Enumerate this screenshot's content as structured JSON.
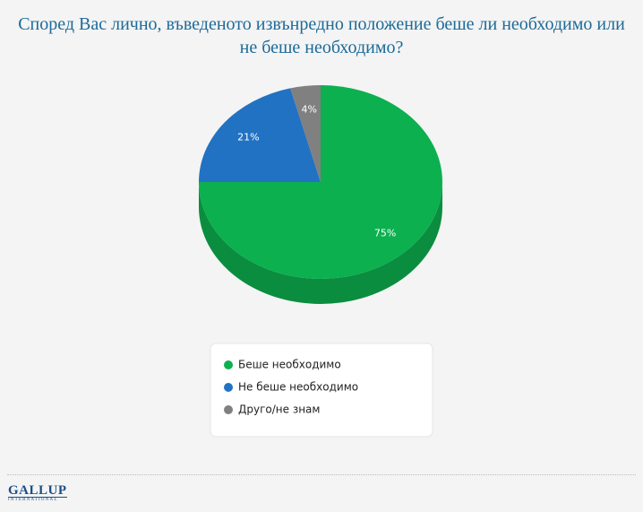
{
  "chart_data": {
    "type": "pie",
    "title": "Според Вас лично, въведеното извънредно положение беше ли необходимо или не беше необходимо?",
    "categories": [
      "Беше необходимо",
      "Не беше необходимо",
      "Друго/не знам"
    ],
    "values": [
      75,
      21,
      4
    ],
    "value_labels": [
      "75%",
      "21%",
      "4%"
    ],
    "colors": [
      "#0cb04f",
      "#2272c3",
      "#808080"
    ],
    "legend": "bottom"
  },
  "logo": {
    "name": "GALLUP",
    "subtitle": "INTERNATIONAL"
  }
}
